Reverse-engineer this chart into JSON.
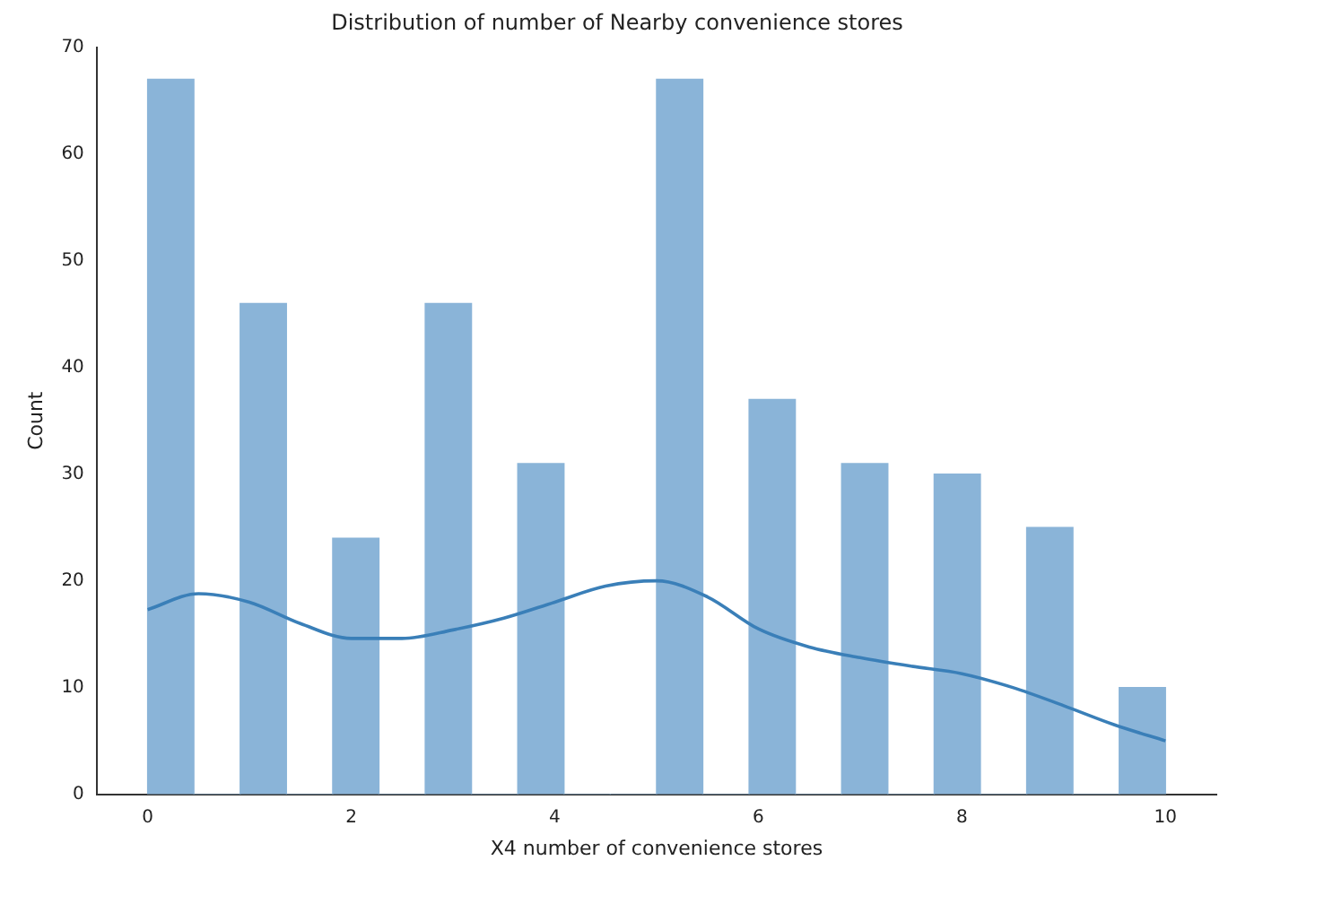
{
  "chart_data": {
    "type": "histogram",
    "title": "Distribution of number of Nearby convenience stores",
    "xlabel": "X4 number of convenience stores",
    "ylabel": "Count",
    "bins": [
      0,
      0.4545,
      0.9091,
      1.3636,
      1.8182,
      2.2727,
      2.7273,
      3.1818,
      3.6364,
      4.0909,
      4.5455,
      5,
      5.4545,
      5.9091,
      6.3636,
      6.8182,
      7.2727,
      7.7273,
      8.1818,
      8.6364,
      9.0909,
      9.5455,
      10
    ],
    "values": [
      67,
      0,
      46,
      0,
      24,
      0,
      46,
      0,
      31,
      0,
      0,
      67,
      0,
      37,
      0,
      31,
      0,
      30,
      0,
      25,
      0,
      10
    ],
    "color": "#8ab4d8",
    "series": [
      {
        "type": "line",
        "color": "#3a7fb8",
        "x": [
          0,
          0.5,
          1,
          1.5,
          2,
          2.5,
          3,
          3.5,
          4,
          4.5,
          5,
          5.5,
          6,
          6.5,
          7,
          7.5,
          8,
          8.5,
          9,
          9.5,
          10
        ],
        "values": [
          17.3,
          18.8,
          18,
          16,
          14.6,
          14.6,
          15.4,
          16.5,
          18,
          19.5,
          20,
          18.5,
          15.5,
          13.8,
          12.8,
          12,
          11.3,
          10,
          8.3,
          6.5,
          5
        ]
      }
    ],
    "xlim": [
      -0.5,
      10.5
    ],
    "xticks": [
      0,
      2,
      4,
      6,
      8,
      10
    ],
    "ylim": [
      0,
      70
    ],
    "yticks": [
      0,
      10,
      20,
      30,
      40,
      50,
      60,
      70
    ],
    "grid": false,
    "legend": false
  }
}
